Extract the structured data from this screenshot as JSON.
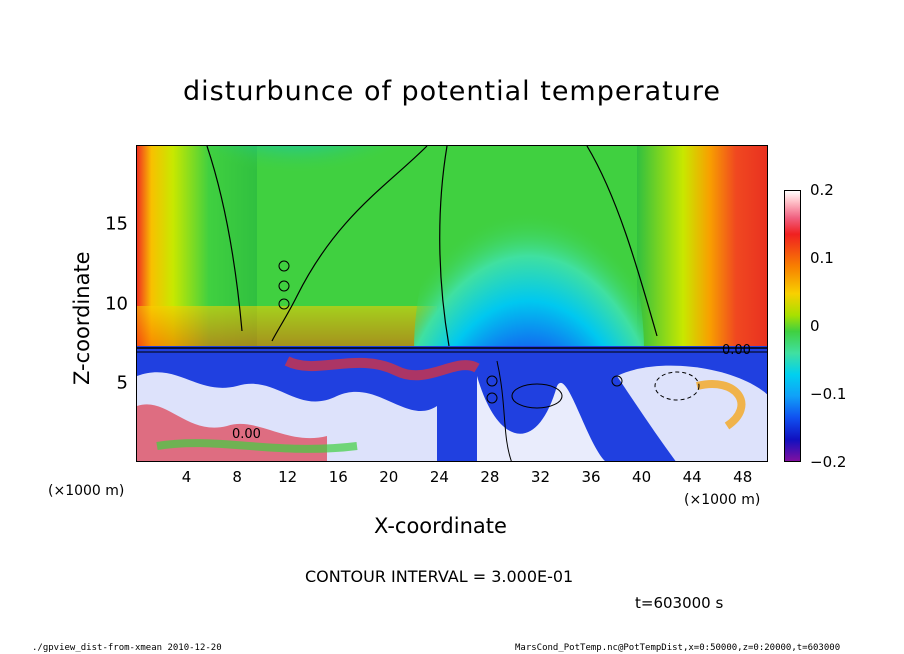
{
  "chart_data": {
    "type": "heatmap",
    "title": "disturbunce of potential temperature",
    "xlabel": "X-coordinate",
    "ylabel": "Z-coordinate",
    "x_unit_left": "(×1000 m)",
    "x_unit_right": "(×1000 m)",
    "xlim": [
      0,
      50
    ],
    "ylim": [
      0,
      20
    ],
    "x_ticks": [
      4,
      8,
      12,
      16,
      20,
      24,
      28,
      32,
      36,
      40,
      44,
      48
    ],
    "y_ticks": [
      5,
      10,
      15
    ],
    "colorbar": {
      "range": [
        -0.2,
        0.2
      ],
      "tick_labels": [
        "0.2",
        "0.1",
        "0",
        "−0.1",
        "−0.2"
      ],
      "tick_values": [
        0.2,
        0.1,
        0,
        -0.1,
        -0.2
      ]
    },
    "contour_labels": [
      "0.00",
      "0.00"
    ],
    "contour_interval_text": "CONTOUR INTERVAL = 3.000E-01",
    "time_text": "t=603000 s"
  },
  "footer": {
    "left": "./gpview_dist-from-xmean   2010-12-20",
    "right": "MarsCond_PotTemp.nc@PotTempDist,x=0:50000,z=0:20000,t=603000"
  }
}
